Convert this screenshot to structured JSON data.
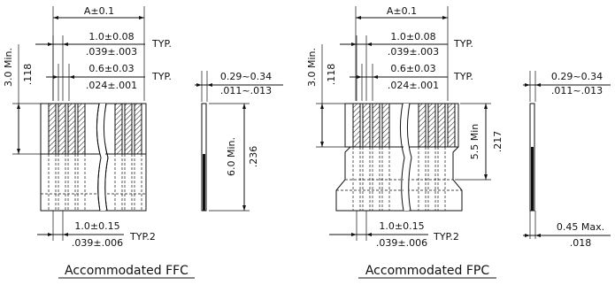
{
  "ffc": {
    "dim_a": "A±0.1",
    "pitch_mm": "1.0±0.08",
    "pitch_in": ".039±.003",
    "typ1": "TYP.",
    "width_mm": "0.6±0.03",
    "width_in": ".024±.001",
    "typ2": "TYP.",
    "height_mm": "3.0 Min.",
    "height_in": ".118",
    "thick_mm": "0.29~0.34",
    "thick_in": ".011~.013",
    "side_mm": "6.0 Min.",
    "side_in": ".236",
    "bottom_mm": "1.0±0.15",
    "bottom_in": ".039±.006",
    "typ3": "TYP.2",
    "caption": "Accommodated FFC"
  },
  "fpc": {
    "dim_a": "A±0.1",
    "pitch_mm": "1.0±0.08",
    "pitch_in": ".039±.003",
    "typ1": "TYP.",
    "width_mm": "0.6±0.03",
    "width_in": ".024±.001",
    "typ2": "TYP.",
    "height_mm": "3.0 Min.",
    "height_in": ".118",
    "thick_mm": "0.29~0.34",
    "thick_in": ".011~.013",
    "side_mm": "5.5 Min",
    "side_in": ".217",
    "bottom_mm": "1.0±0.15",
    "bottom_in": ".039±.006",
    "typ3": "TYP.2",
    "stiff_mm": "0.45 Max.",
    "stiff_in": ".018",
    "caption": "Accommodated FPC"
  }
}
